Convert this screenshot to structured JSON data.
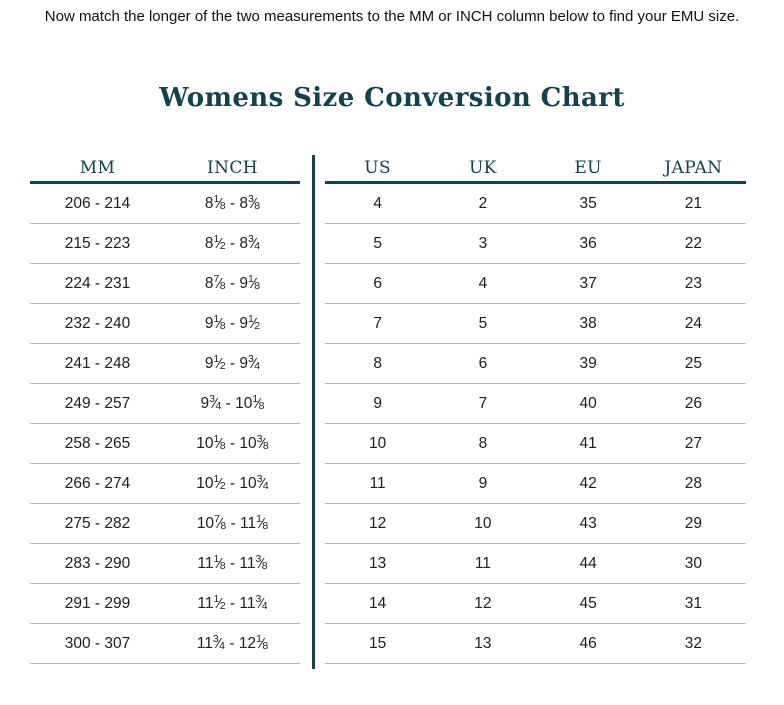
{
  "intro": {
    "text": "Now match the longer of the two measurements to the MM or INCH column below to find your EMU size."
  },
  "title": "Womens Size Conversion Chart",
  "colors": {
    "teal": "#12414f",
    "row_line": "#b9b9b9",
    "text": "#1d1d1d"
  },
  "left_table": {
    "headers": [
      "MM",
      "INCH"
    ],
    "rows": [
      {
        "mm": "206 - 214",
        "inch": "8 1/8 - 8 3/8"
      },
      {
        "mm": "215 - 223",
        "inch": "8 1/2 - 8 3/4"
      },
      {
        "mm": "224 - 231",
        "inch": "8 7/8 - 9 1/8"
      },
      {
        "mm": "232 - 240",
        "inch": "9 1/8 - 9 1/2"
      },
      {
        "mm": "241 - 248",
        "inch": "9 1/2 - 9 3/4"
      },
      {
        "mm": "249 - 257",
        "inch": "9 3/4 - 10 1/8"
      },
      {
        "mm": "258 - 265",
        "inch": "10 1/8 - 10 3/8"
      },
      {
        "mm": "266 - 274",
        "inch": "10 1/2 - 10 3/4"
      },
      {
        "mm": "275 - 282",
        "inch": "10 7/8 - 11 1/8"
      },
      {
        "mm": "283 - 290",
        "inch": "11 1/8 - 11 3/8"
      },
      {
        "mm": "291 - 299",
        "inch": "11 1/2 - 11 3/4"
      },
      {
        "mm": "300 - 307",
        "inch": "11 3/4 - 12 1/8"
      }
    ]
  },
  "right_table": {
    "headers": [
      "US",
      "UK",
      "EU",
      "JAPAN"
    ],
    "rows": [
      {
        "us": "4",
        "uk": "2",
        "eu": "35",
        "japan": "21"
      },
      {
        "us": "5",
        "uk": "3",
        "eu": "36",
        "japan": "22"
      },
      {
        "us": "6",
        "uk": "4",
        "eu": "37",
        "japan": "23"
      },
      {
        "us": "7",
        "uk": "5",
        "eu": "38",
        "japan": "24"
      },
      {
        "us": "8",
        "uk": "6",
        "eu": "39",
        "japan": "25"
      },
      {
        "us": "9",
        "uk": "7",
        "eu": "40",
        "japan": "26"
      },
      {
        "us": "10",
        "uk": "8",
        "eu": "41",
        "japan": "27"
      },
      {
        "us": "11",
        "uk": "9",
        "eu": "42",
        "japan": "28"
      },
      {
        "us": "12",
        "uk": "10",
        "eu": "43",
        "japan": "29"
      },
      {
        "us": "13",
        "uk": "11",
        "eu": "44",
        "japan": "30"
      },
      {
        "us": "14",
        "uk": "12",
        "eu": "45",
        "japan": "31"
      },
      {
        "us": "15",
        "uk": "13",
        "eu": "46",
        "japan": "32"
      }
    ]
  }
}
